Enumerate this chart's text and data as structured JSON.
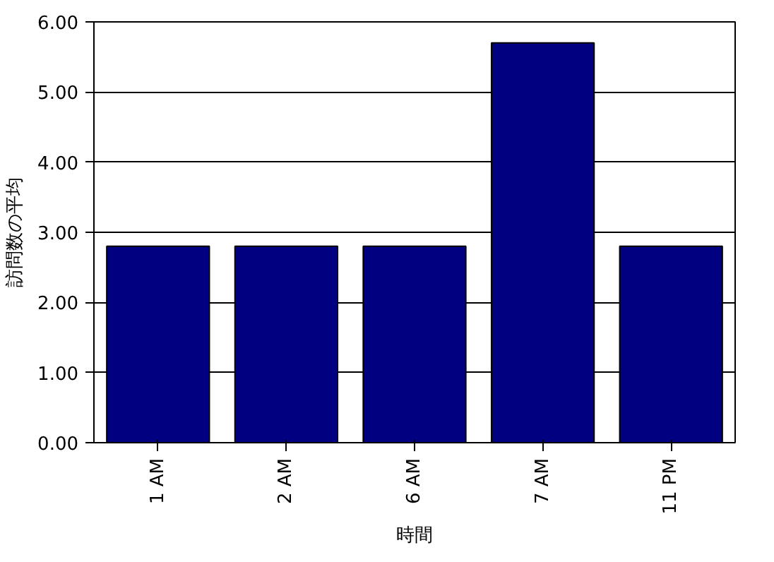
{
  "chart_data": {
    "type": "bar",
    "xlabel": "時間",
    "ylabel": "訪問数の平均",
    "categories": [
      "1 AM",
      "2 AM",
      "6 AM",
      "7 AM",
      "11 PM"
    ],
    "values": [
      2.8,
      2.8,
      2.8,
      5.7,
      2.8
    ],
    "color": "#000080",
    "ylim": [
      0,
      6
    ],
    "yticks": [
      {
        "value": 0,
        "label": "0.00"
      },
      {
        "value": 1,
        "label": "1.00"
      },
      {
        "value": 2,
        "label": "2.00"
      },
      {
        "value": 3,
        "label": "3.00"
      },
      {
        "value": 4,
        "label": "4.00"
      },
      {
        "value": 5,
        "label": "5.00"
      },
      {
        "value": 6,
        "label": "6.00"
      }
    ],
    "grid": "y"
  }
}
